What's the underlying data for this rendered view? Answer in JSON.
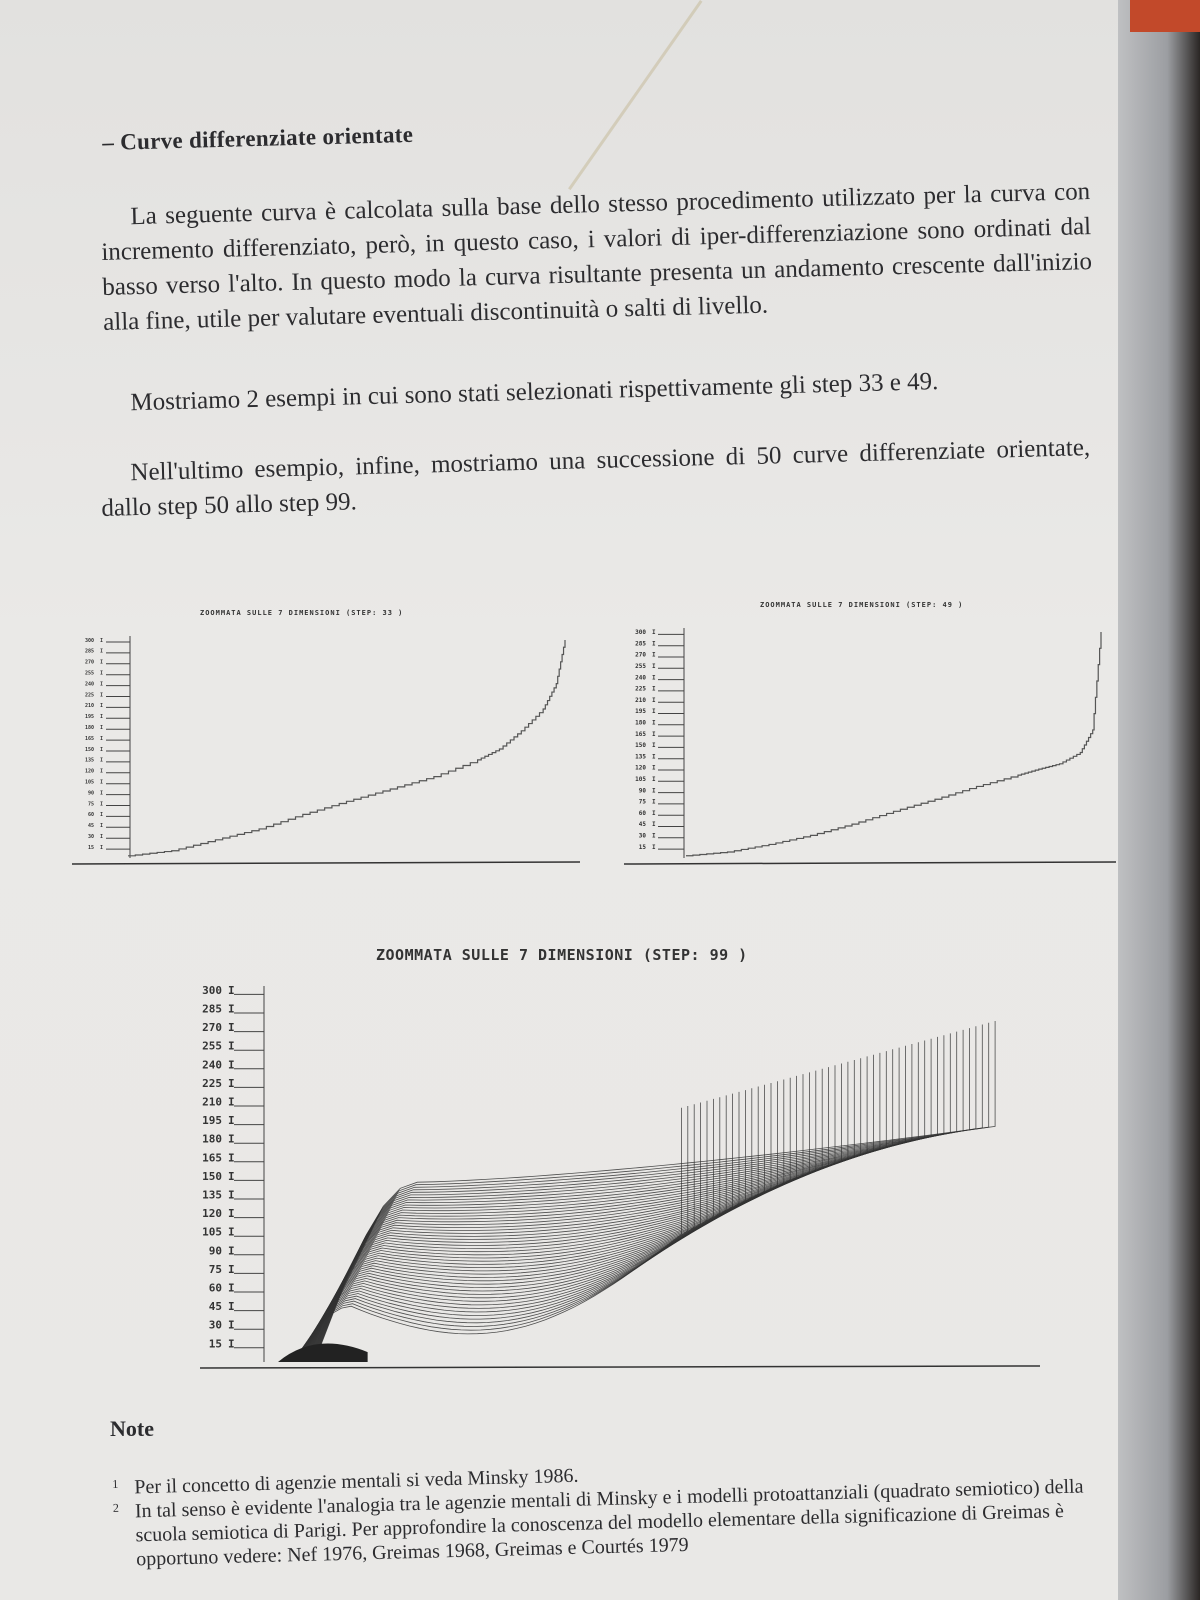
{
  "heading": "– Curve differenziate orientate",
  "paragraphs": [
    "La seguente curva è calcolata sulla base dello stesso procedimento utilizzato per la curva con incremento differenziato, però, in questo caso, i valori di iper-differenziazione sono ordinati dal basso verso l'alto. In questo modo la curva risultante presenta un andamento crescente dall'inizio alla fine, utile per valutare eventuali discontinuità o salti di livello.",
    "Mostriamo 2 esempi in cui sono stati selezionati rispettivamente gli step 33 e 49.",
    "Nell'ultimo esempio, infine, mostriamo una successione di 50 curve differenziate orientate, dallo step 50 allo step 99."
  ],
  "chart_titles": {
    "left": "ZOOMMATA SULLE 7  DIMENSIONI  (STEP: 33 )",
    "right": "ZOOMMATA SULLE 7  DIMENSIONI  (STEP: 49 )",
    "bottom": "ZOOMMATA SULLE 7  DIMENSIONI  (STEP: 99 )"
  },
  "chart_data": [
    {
      "type": "line",
      "title": "ZOOMMATA SULLE 7  DIMENSIONI  (STEP: 33 )",
      "yticks": [
        300,
        285,
        270,
        255,
        240,
        225,
        210,
        195,
        180,
        165,
        150,
        135,
        120,
        105,
        90,
        75,
        60,
        45,
        30,
        15
      ],
      "ylim": [
        0,
        300
      ],
      "x": [
        0,
        0.1,
        0.2,
        0.3,
        0.4,
        0.5,
        0.6,
        0.7,
        0.8,
        0.85,
        0.9,
        0.95,
        0.98,
        1.0
      ],
      "values": [
        3,
        10,
        25,
        40,
        60,
        78,
        95,
        112,
        135,
        150,
        175,
        205,
        240,
        300
      ]
    },
    {
      "type": "line",
      "title": "ZOOMMATA SULLE 7  DIMENSIONI  (STEP: 49 )",
      "yticks": [
        300,
        285,
        270,
        255,
        240,
        225,
        210,
        195,
        180,
        165,
        150,
        135,
        120,
        105,
        90,
        75,
        60,
        45,
        30,
        15
      ],
      "ylim": [
        0,
        300
      ],
      "x": [
        0,
        0.1,
        0.2,
        0.3,
        0.4,
        0.5,
        0.6,
        0.7,
        0.8,
        0.85,
        0.9,
        0.95,
        0.98,
        1.0
      ],
      "values": [
        3,
        8,
        18,
        30,
        45,
        62,
        78,
        95,
        110,
        118,
        125,
        140,
        170,
        300
      ]
    },
    {
      "type": "line",
      "title": "ZOOMMATA SULLE 7  DIMENSIONI  (STEP: 99 )",
      "yticks": [
        300,
        285,
        270,
        255,
        240,
        225,
        210,
        195,
        180,
        165,
        150,
        135,
        120,
        105,
        90,
        75,
        60,
        45,
        30,
        15
      ],
      "ylim": [
        0,
        300
      ],
      "series_count": 50,
      "steps": [
        50,
        99
      ]
    }
  ],
  "notes": {
    "title": "Note",
    "items": [
      {
        "num": "1",
        "text": "Per il concetto di agenzie mentali si veda Minsky 1986."
      },
      {
        "num": "2",
        "text": "In tal senso è evidente l'analogia tra le agenzie mentali di Minsky e i modelli protoattanziali (quadrato semiotico) della scuola semiotica di Parigi. Per approfondire la conoscenza del modello elementare della significazione di Greimas è opportuno vedere: Nef 1976, Greimas 1968, Greimas e Courtés 1979"
      }
    ]
  }
}
